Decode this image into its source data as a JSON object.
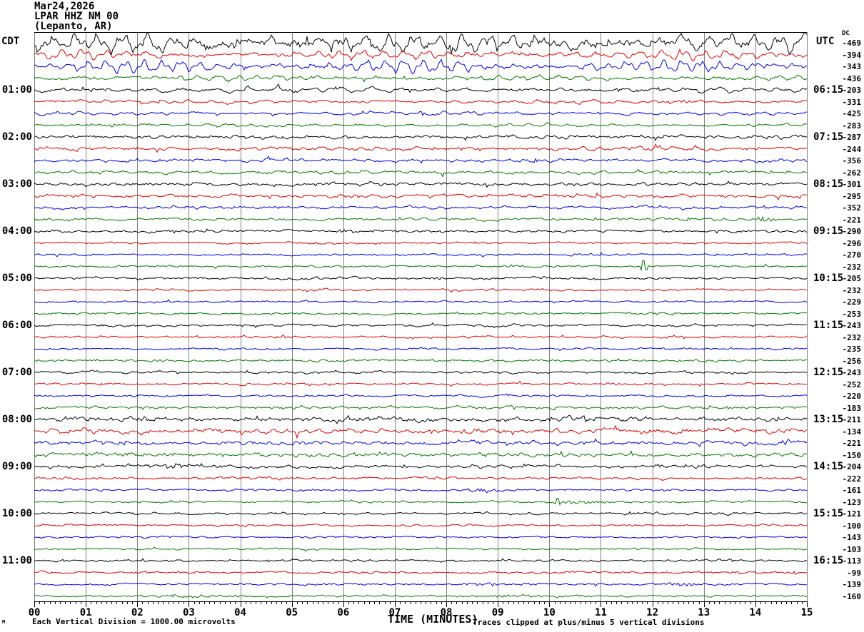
{
  "title": {
    "date": "Mar24,2026",
    "station": "LPAR HHZ NM 00",
    "location": "(Lepanto, AR)"
  },
  "axes": {
    "left_timezone": "CDT",
    "right_timezone": "UTC",
    "dc_header": "DC",
    "x_title": "TIME (MINUTES)",
    "left_labels": [
      {
        "text": "01:00",
        "row": 4
      },
      {
        "text": "02:00",
        "row": 8
      },
      {
        "text": "03:00",
        "row": 12
      },
      {
        "text": "04:00",
        "row": 16
      },
      {
        "text": "05:00",
        "row": 20
      },
      {
        "text": "06:00",
        "row": 24
      },
      {
        "text": "07:00",
        "row": 28
      },
      {
        "text": "08:00",
        "row": 32
      },
      {
        "text": "09:00",
        "row": 36
      },
      {
        "text": "10:00",
        "row": 40
      },
      {
        "text": "11:00",
        "row": 44
      }
    ],
    "right_labels": [
      {
        "text": "06:15",
        "row": 4
      },
      {
        "text": "07:15",
        "row": 8
      },
      {
        "text": "08:15",
        "row": 12
      },
      {
        "text": "09:15",
        "row": 16
      },
      {
        "text": "10:15",
        "row": 20
      },
      {
        "text": "11:15",
        "row": 24
      },
      {
        "text": "12:15",
        "row": 28
      },
      {
        "text": "13:15",
        "row": 32
      },
      {
        "text": "14:15",
        "row": 36
      },
      {
        "text": "15:15",
        "row": 40
      },
      {
        "text": "16:15",
        "row": 44
      }
    ],
    "x_ticks": [
      "00",
      "01",
      "02",
      "03",
      "04",
      "05",
      "06",
      "07",
      "08",
      "09",
      "10",
      "11",
      "12",
      "13",
      "14",
      "15"
    ]
  },
  "footer": {
    "left": "Each Vertical Division = 1000.00 microvolts",
    "right": "Traces clipped at plus/minus 5 vertical divisions",
    "watermark": "M"
  },
  "colors": {
    "black": "#000000",
    "red": "#e00000",
    "blue": "#0000dd",
    "green": "#007700",
    "grid": "#808080"
  },
  "chart_data": {
    "type": "line",
    "subtype": "helicorder-seismogram",
    "x_range_minutes": [
      0,
      15
    ],
    "minutes_per_row": 15,
    "rows_per_hour": 4,
    "row_count": 48,
    "grid": "vertical-minute-lines",
    "clip_divisions": 5,
    "microvolts_per_division": 1000.0,
    "rows": [
      {
        "dc": -469,
        "color": "black",
        "amp": 11,
        "jit": 4.5,
        "period": 34,
        "events": []
      },
      {
        "dc": -394,
        "color": "red",
        "amp": 6,
        "jit": 2,
        "period": 30,
        "events": []
      },
      {
        "dc": -343,
        "color": "blue",
        "amp": 8.5,
        "jit": 1.5,
        "period": 26,
        "events": []
      },
      {
        "dc": -436,
        "color": "green",
        "amp": 3.5,
        "jit": 1.5,
        "period": 28,
        "events": []
      },
      {
        "dc": -203,
        "color": "black",
        "amp": 3.2,
        "jit": 1.6,
        "period": 44,
        "events": []
      },
      {
        "dc": -331,
        "color": "red",
        "amp": 2.4,
        "jit": 1.3,
        "period": 38,
        "events": []
      },
      {
        "dc": -425,
        "color": "blue",
        "amp": 2.0,
        "jit": 1.2,
        "period": 34,
        "events": []
      },
      {
        "dc": -283,
        "color": "green",
        "amp": 1.7,
        "jit": 1.1,
        "period": 30,
        "events": []
      },
      {
        "dc": -287,
        "color": "black",
        "amp": 1.7,
        "jit": 1.7,
        "period": 26,
        "events": []
      },
      {
        "dc": -244,
        "color": "red",
        "amp": 1.7,
        "jit": 1.7,
        "period": 26,
        "events": []
      },
      {
        "dc": -356,
        "color": "blue",
        "amp": 1.4,
        "jit": 1.5,
        "period": 24,
        "events": []
      },
      {
        "dc": -262,
        "color": "green",
        "amp": 1.4,
        "jit": 1.5,
        "period": 24,
        "events": []
      },
      {
        "dc": -301,
        "color": "black",
        "amp": 1.5,
        "jit": 1.6,
        "period": 24,
        "events": []
      },
      {
        "dc": -295,
        "color": "red",
        "amp": 1.5,
        "jit": 1.6,
        "period": 24,
        "events": []
      },
      {
        "dc": -352,
        "color": "blue",
        "amp": 1.3,
        "jit": 1.4,
        "period": 22,
        "events": []
      },
      {
        "dc": -221,
        "color": "green",
        "amp": 1.1,
        "jit": 1.2,
        "period": 22,
        "events": [
          {
            "t": 14.15,
            "w": 0.2,
            "a": 3
          }
        ]
      },
      {
        "dc": -290,
        "color": "black",
        "amp": 1.0,
        "jit": 1.2,
        "period": 18,
        "events": [
          {
            "t": 6.1,
            "w": 0.2,
            "a": 2
          }
        ]
      },
      {
        "dc": -296,
        "color": "red",
        "amp": 0.8,
        "jit": 1.0,
        "period": 18,
        "events": []
      },
      {
        "dc": -270,
        "color": "blue",
        "amp": 0.8,
        "jit": 1.0,
        "period": 18,
        "events": []
      },
      {
        "dc": -232,
        "color": "green",
        "amp": 0.8,
        "jit": 1.0,
        "period": 18,
        "events": [
          {
            "t": 11.83,
            "w": 0,
            "a": 9
          }
        ]
      },
      {
        "dc": -205,
        "color": "black",
        "amp": 0.9,
        "jit": 1.2,
        "period": 18,
        "events": []
      },
      {
        "dc": -232,
        "color": "red",
        "amp": 0.8,
        "jit": 1.0,
        "period": 18,
        "events": [
          {
            "t": 5.4,
            "w": 0.25,
            "a": 2.5
          }
        ]
      },
      {
        "dc": -229,
        "color": "blue",
        "amp": 0.8,
        "jit": 1.0,
        "period": 18,
        "events": []
      },
      {
        "dc": -253,
        "color": "green",
        "amp": 0.8,
        "jit": 1.0,
        "period": 18,
        "events": []
      },
      {
        "dc": -243,
        "color": "black",
        "amp": 0.9,
        "jit": 1.2,
        "period": 18,
        "events": []
      },
      {
        "dc": -232,
        "color": "red",
        "amp": 0.8,
        "jit": 1.0,
        "period": 18,
        "events": []
      },
      {
        "dc": -235,
        "color": "blue",
        "amp": 0.7,
        "jit": 0.9,
        "period": 18,
        "events": []
      },
      {
        "dc": -256,
        "color": "green",
        "amp": 0.8,
        "jit": 1.1,
        "period": 18,
        "events": []
      },
      {
        "dc": -243,
        "color": "black",
        "amp": 0.9,
        "jit": 1.2,
        "period": 18,
        "events": []
      },
      {
        "dc": -252,
        "color": "red",
        "amp": 0.8,
        "jit": 1.1,
        "period": 18,
        "events": []
      },
      {
        "dc": -220,
        "color": "blue",
        "amp": 0.8,
        "jit": 1.0,
        "period": 18,
        "events": []
      },
      {
        "dc": -183,
        "color": "green",
        "amp": 1.2,
        "jit": 1.4,
        "period": 18,
        "events": []
      },
      {
        "dc": -211,
        "color": "black",
        "amp": 2.0,
        "jit": 2.1,
        "period": 22,
        "events": [
          {
            "t": 1,
            "w": 1,
            "a": 1.5
          },
          {
            "t": 7,
            "w": 1.5,
            "a": 1.5
          }
        ]
      },
      {
        "dc": -134,
        "color": "red",
        "amp": 2.0,
        "jit": 2.1,
        "period": 22,
        "events": [
          {
            "t": 3.5,
            "w": 1,
            "a": 1.5
          },
          {
            "t": 8,
            "w": 1,
            "a": 1.5
          },
          {
            "t": 12.5,
            "w": 1,
            "a": 1.5
          }
        ]
      },
      {
        "dc": -221,
        "color": "blue",
        "amp": 1.6,
        "jit": 1.8,
        "period": 22,
        "events": [
          {
            "t": 2,
            "w": 0.8,
            "a": 1.5
          },
          {
            "t": 9,
            "w": 1,
            "a": 1.5
          },
          {
            "t": 14.6,
            "w": 0.3,
            "a": 2.5
          }
        ]
      },
      {
        "dc": -150,
        "color": "green",
        "amp": 1.6,
        "jit": 1.8,
        "period": 22,
        "events": [
          {
            "t": 2,
            "w": 0.8,
            "a": 1.5
          },
          {
            "t": 6.5,
            "w": 1.2,
            "a": 1.5
          }
        ]
      },
      {
        "dc": -204,
        "color": "black",
        "amp": 1.3,
        "jit": 1.5,
        "period": 20,
        "events": [
          {
            "t": 2.6,
            "w": 0.4,
            "a": 2.5
          }
        ]
      },
      {
        "dc": -222,
        "color": "red",
        "amp": 1.0,
        "jit": 1.2,
        "period": 18,
        "events": []
      },
      {
        "dc": -161,
        "color": "blue",
        "amp": 0.8,
        "jit": 1.0,
        "period": 18,
        "events": [
          {
            "t": 8.65,
            "w": 0.3,
            "a": 3
          }
        ]
      },
      {
        "dc": -123,
        "color": "green",
        "amp": 0.8,
        "jit": 1.0,
        "period": 18,
        "events": [
          {
            "t": 10.15,
            "w": 0,
            "a": 4
          },
          {
            "t": 10.6,
            "w": 0.5,
            "a": 2
          }
        ]
      },
      {
        "dc": -121,
        "color": "black",
        "amp": 1.0,
        "jit": 1.2,
        "period": 18,
        "events": []
      },
      {
        "dc": -100,
        "color": "red",
        "amp": 0.8,
        "jit": 1.1,
        "period": 18,
        "events": []
      },
      {
        "dc": -143,
        "color": "blue",
        "amp": 0.7,
        "jit": 0.9,
        "period": 18,
        "events": []
      },
      {
        "dc": -103,
        "color": "green",
        "amp": 0.7,
        "jit": 0.9,
        "period": 18,
        "events": []
      },
      {
        "dc": -113,
        "color": "black",
        "amp": 0.9,
        "jit": 1.1,
        "period": 18,
        "events": []
      },
      {
        "dc": -99,
        "color": "red",
        "amp": 0.8,
        "jit": 1.1,
        "period": 18,
        "events": []
      },
      {
        "dc": -139,
        "color": "blue",
        "amp": 0.7,
        "jit": 0.9,
        "period": 18,
        "events": [
          {
            "t": 9,
            "w": 0.7,
            "a": 1.8
          },
          {
            "t": 12.5,
            "w": 0.5,
            "a": 1.8
          }
        ]
      },
      {
        "dc": -160,
        "color": "green",
        "amp": 0.7,
        "jit": 0.9,
        "period": 18,
        "events": [
          {
            "t": 3.2,
            "w": 0.9,
            "a": 1.2
          },
          {
            "t": 9.3,
            "w": 1.2,
            "a": 1.5
          }
        ]
      }
    ]
  }
}
